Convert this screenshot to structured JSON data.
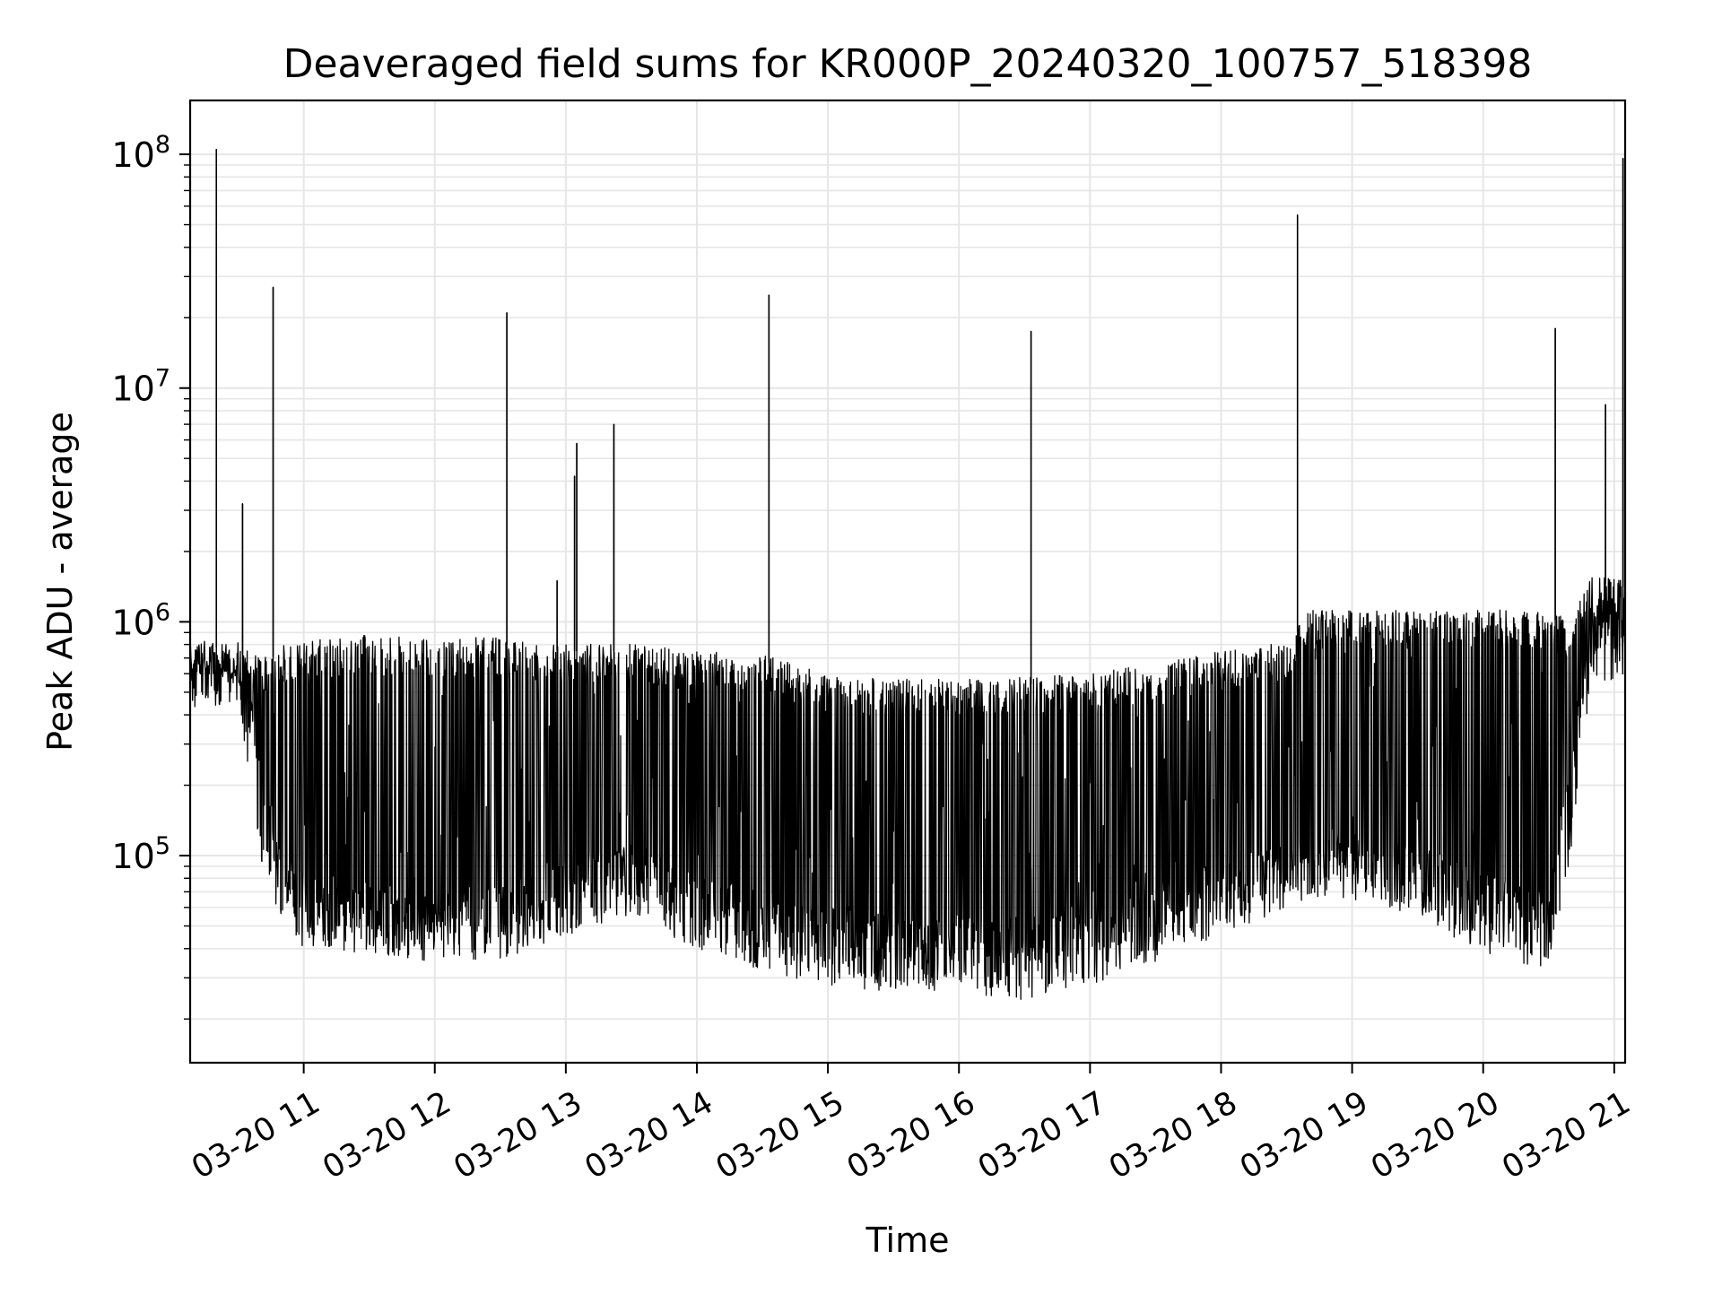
{
  "chart_data": {
    "type": "line",
    "title": "Deaveraged field sums for KR000P_20240320_100757_518398",
    "xlabel": "Time",
    "ylabel": "Peak ADU - average",
    "yscale": "log",
    "ylim": [
      13000,
      170000000
    ],
    "xlim": [
      "2024-03-20T10:08:00",
      "2024-03-20T21:05:00"
    ],
    "x_ticks": [
      "03-20 11",
      "03-20 12",
      "03-20 13",
      "03-20 14",
      "03-20 15",
      "03-20 16",
      "03-20 17",
      "03-20 18",
      "03-20 19",
      "03-20 20",
      "03-20 21"
    ],
    "y_ticks": [
      {
        "value": 100000,
        "base": "10",
        "exp": "5"
      },
      {
        "value": 1000000,
        "base": "10",
        "exp": "6"
      },
      {
        "value": 10000000,
        "base": "10",
        "exp": "7"
      },
      {
        "value": 100000000,
        "base": "10",
        "exp": "8"
      }
    ],
    "grid": true,
    "line_color": "#000000",
    "grid_color": "#e6e6e6",
    "series": [
      {
        "envelope": {
          "time": [
            "2024-03-20T10:08:00",
            "2024-03-20T10:30:00",
            "2024-03-20T10:40:00",
            "2024-03-20T10:50:00",
            "2024-03-20T11:00:00",
            "2024-03-20T11:30:00",
            "2024-03-20T12:00:00",
            "2024-03-20T12:30:00",
            "2024-03-20T13:00:00",
            "2024-03-20T13:30:00",
            "2024-03-20T14:00:00",
            "2024-03-20T14:30:00",
            "2024-03-20T15:00:00",
            "2024-03-20T15:30:00",
            "2024-03-20T16:00:00",
            "2024-03-20T16:30:00",
            "2024-03-20T17:00:00",
            "2024-03-20T17:30:00",
            "2024-03-20T18:00:00",
            "2024-03-20T18:30:00",
            "2024-03-20T18:40:00",
            "2024-03-20T19:00:00",
            "2024-03-20T19:30:00",
            "2024-03-20T20:00:00",
            "2024-03-20T20:30:00",
            "2024-03-20T20:40:00",
            "2024-03-20T20:50:00",
            "2024-03-20T21:05:00"
          ],
          "upper": [
            800000,
            750000,
            650000,
            750000,
            780000,
            820000,
            800000,
            800000,
            750000,
            750000,
            700000,
            680000,
            560000,
            540000,
            530000,
            540000,
            560000,
            620000,
            700000,
            780000,
            1050000,
            1050000,
            1050000,
            1050000,
            1050000,
            950000,
            1500000,
            1400000
          ],
          "lower": [
            550000,
            600000,
            300000,
            70000,
            60000,
            55000,
            50000,
            55000,
            75000,
            80000,
            60000,
            50000,
            45000,
            40000,
            40000,
            40000,
            45000,
            55000,
            70000,
            80000,
            90000,
            90000,
            80000,
            60000,
            50000,
            200000,
            1000000,
            800000
          ],
          "trough": [
            420000,
            450000,
            100000,
            50000,
            40000,
            38000,
            35000,
            35000,
            45000,
            55000,
            40000,
            32000,
            28000,
            26000,
            26000,
            24000,
            28000,
            35000,
            45000,
            60000,
            65000,
            65000,
            55000,
            38000,
            32000,
            100000,
            600000,
            500000
          ]
        },
        "spikes": [
          {
            "time": "2024-03-20T10:20:00",
            "value": 105000000
          },
          {
            "time": "2024-03-20T10:32:00",
            "value": 3200000
          },
          {
            "time": "2024-03-20T10:46:00",
            "value": 27000000
          },
          {
            "time": "2024-03-20T12:33:00",
            "value": 21000000
          },
          {
            "time": "2024-03-20T12:56:00",
            "value": 1500000
          },
          {
            "time": "2024-03-20T13:04:00",
            "value": 4200000
          },
          {
            "time": "2024-03-20T13:05:00",
            "value": 5800000
          },
          {
            "time": "2024-03-20T13:22:00",
            "value": 7000000
          },
          {
            "time": "2024-03-20T14:33:00",
            "value": 25000000
          },
          {
            "time": "2024-03-20T16:33:00",
            "value": 17500000
          },
          {
            "time": "2024-03-20T18:35:00",
            "value": 55000000
          },
          {
            "time": "2024-03-20T20:33:00",
            "value": 18000000
          },
          {
            "time": "2024-03-20T20:56:00",
            "value": 8500000
          },
          {
            "time": "2024-03-20T21:04:00",
            "value": 96000000
          }
        ]
      }
    ]
  }
}
